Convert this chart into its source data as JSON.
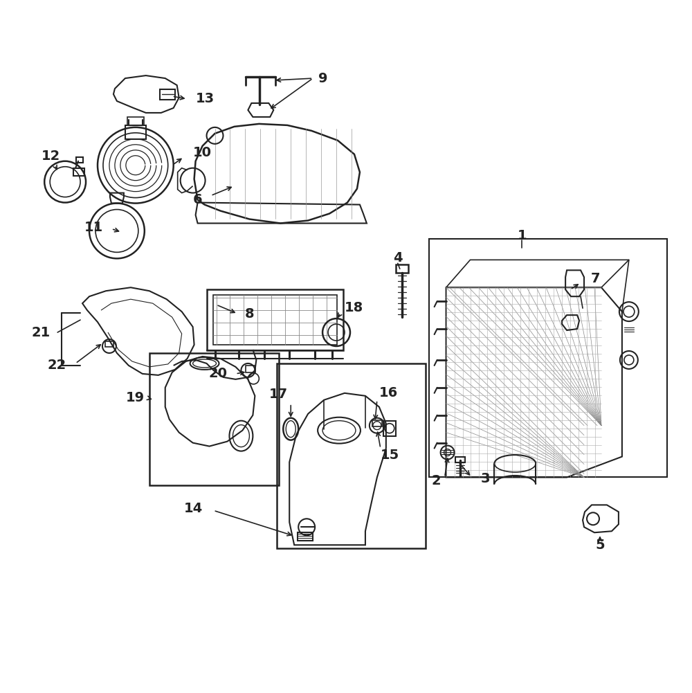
{
  "bg_color": "#ffffff",
  "line_color": "#222222",
  "figsize": [
    10.0,
    10.01
  ],
  "dpi": 100
}
